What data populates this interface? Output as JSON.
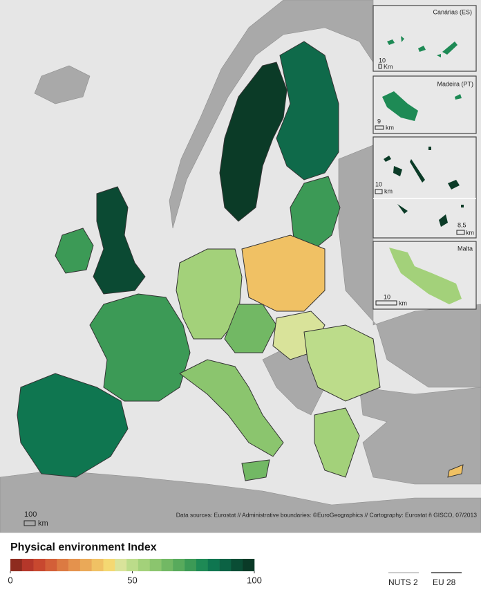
{
  "map": {
    "insets": [
      {
        "title": "Canárias (ES)",
        "scale_value": "10",
        "scale_unit": "Km"
      },
      {
        "title": "Madeira (PT)",
        "scale_value": "9",
        "scale_unit": "km"
      },
      {
        "scale_value": "10",
        "scale_unit": "km",
        "scale_value_2": "8,5",
        "scale_unit_2": "km"
      },
      {
        "title": "Malta",
        "scale_value": "10",
        "scale_unit": "km"
      }
    ],
    "scale_value": "100",
    "scale_unit": "km",
    "source": "Data sources: Eurostat // Administrative boundaries: ©EuroGeographics  // Cartography: Eurostat ñ GISCO, 07/2013"
  },
  "legend": {
    "title": "Physical environment Index",
    "range": [
      0,
      100
    ],
    "ticks": [
      0,
      50,
      100
    ],
    "colors": [
      "#8e2b1f",
      "#b5372a",
      "#c8482f",
      "#d35f38",
      "#dc7a42",
      "#e4924d",
      "#eaa958",
      "#f0c164",
      "#f4d872",
      "#d9e39a",
      "#bcdc8a",
      "#a3d17a",
      "#8bc56e",
      "#72b864",
      "#58aa5c",
      "#3c9a56",
      "#1e8a55",
      "#0f7650",
      "#0c6244",
      "#0a4d35",
      "#0a3a27"
    ],
    "lines": [
      "NUTS 2",
      "EU 28"
    ]
  }
}
